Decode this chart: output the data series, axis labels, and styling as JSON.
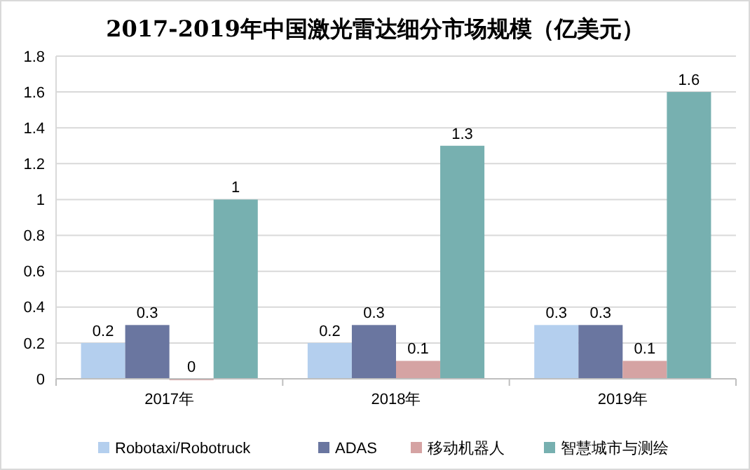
{
  "chart_data": {
    "type": "bar",
    "title": "2017-2019年中国激光雷达细分市场规模（亿美元）",
    "categories": [
      "2017年",
      "2018年",
      "2019年"
    ],
    "series": [
      {
        "name": "Robotaxi/Robotruck",
        "color": "#b4cfee",
        "values": [
          0.2,
          0.2,
          0.3
        ]
      },
      {
        "name": "ADAS",
        "color": "#6a76a0",
        "values": [
          0.3,
          0.3,
          0.3
        ]
      },
      {
        "name": "移动机器人",
        "color": "#d5a3a3",
        "values": [
          0,
          0.1,
          0.1
        ]
      },
      {
        "name": "智慧城市与测绘",
        "color": "#77b0b0",
        "values": [
          1,
          1.3,
          1.6
        ]
      }
    ],
    "ylim": [
      0,
      1.8
    ],
    "yticks": [
      0,
      0.2,
      0.4,
      0.6,
      0.8,
      1,
      1.2,
      1.4,
      1.6,
      1.8
    ],
    "grid": "y",
    "legend": "bottom",
    "data_labels": true
  }
}
